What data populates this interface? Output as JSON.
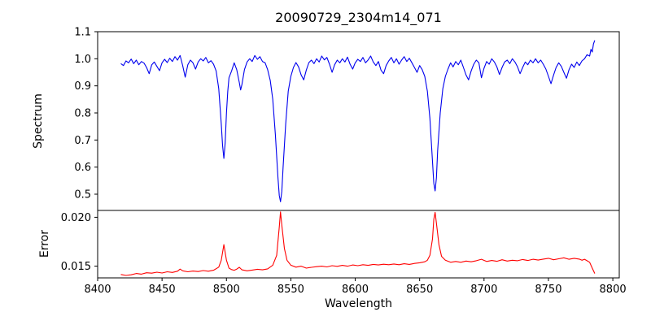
{
  "title": "20090729_2304m14_071",
  "chart_data": [
    {
      "type": "line",
      "panel": "top",
      "ylabel": "Spectrum",
      "xlim": [
        8400,
        8805
      ],
      "ylim": [
        0.44,
        1.1
      ],
      "yticks": [
        0.5,
        0.6,
        0.7,
        0.8,
        0.9,
        1.0,
        1.1
      ],
      "ytick_labels": [
        "0.5",
        "0.6",
        "0.7",
        "0.8",
        "0.9",
        "1.0",
        "1.1"
      ],
      "grid": false,
      "legend": "none",
      "series": [
        {
          "name": "spectrum",
          "color": "#0000ee",
          "x": [
            8418,
            8420,
            8422,
            8424,
            8426,
            8428,
            8430,
            8432,
            8434,
            8436,
            8438,
            8440,
            8442,
            8444,
            8446,
            8448,
            8450,
            8452,
            8454,
            8456,
            8458,
            8460,
            8462,
            8464,
            8466,
            8468,
            8470,
            8472,
            8474,
            8476,
            8478,
            8480,
            8482,
            8484,
            8486,
            8488,
            8490,
            8492,
            8494,
            8496,
            8497,
            8498,
            8499,
            8500,
            8501,
            8502,
            8504,
            8506,
            8508,
            8510,
            8511,
            8512,
            8514,
            8516,
            8518,
            8520,
            8522,
            8524,
            8526,
            8528,
            8530,
            8532,
            8534,
            8536,
            8538,
            8540,
            8541,
            8542,
            8543,
            8544,
            8546,
            8548,
            8550,
            8552,
            8554,
            8556,
            8558,
            8560,
            8562,
            8564,
            8566,
            8568,
            8570,
            8572,
            8574,
            8576,
            8578,
            8580,
            8582,
            8584,
            8586,
            8588,
            8590,
            8592,
            8594,
            8596,
            8598,
            8600,
            8602,
            8604,
            8606,
            8608,
            8610,
            8612,
            8614,
            8616,
            8618,
            8620,
            8622,
            8624,
            8626,
            8628,
            8630,
            8632,
            8634,
            8636,
            8638,
            8640,
            8642,
            8644,
            8646,
            8648,
            8650,
            8652,
            8654,
            8656,
            8658,
            8660,
            8661,
            8662,
            8663,
            8664,
            8666,
            8668,
            8670,
            8672,
            8674,
            8676,
            8678,
            8680,
            8682,
            8684,
            8686,
            8688,
            8690,
            8692,
            8694,
            8696,
            8698,
            8700,
            8702,
            8704,
            8706,
            8708,
            8710,
            8712,
            8714,
            8716,
            8718,
            8720,
            8722,
            8724,
            8726,
            8728,
            8730,
            8732,
            8734,
            8736,
            8738,
            8740,
            8742,
            8744,
            8746,
            8748,
            8750,
            8752,
            8754,
            8756,
            8758,
            8760,
            8762,
            8764,
            8766,
            8768,
            8770,
            8772,
            8774,
            8776,
            8778,
            8780,
            8782,
            8783,
            8784,
            8785,
            8786
          ],
          "y": [
            0.982,
            0.975,
            0.992,
            0.985,
            0.999,
            0.982,
            0.995,
            0.978,
            0.99,
            0.984,
            0.968,
            0.945,
            0.978,
            0.988,
            0.972,
            0.956,
            0.985,
            0.998,
            0.986,
            1.002,
            0.99,
            1.008,
            0.995,
            1.012,
            0.975,
            0.932,
            0.978,
            0.995,
            0.985,
            0.962,
            0.988,
            1.0,
            0.992,
            1.005,
            0.985,
            0.993,
            0.98,
            0.955,
            0.89,
            0.76,
            0.68,
            0.632,
            0.69,
            0.8,
            0.88,
            0.93,
            0.955,
            0.985,
            0.96,
            0.912,
            0.885,
            0.905,
            0.96,
            0.988,
            1.0,
            0.99,
            1.012,
            0.998,
            1.008,
            0.99,
            0.985,
            0.96,
            0.92,
            0.85,
            0.72,
            0.56,
            0.495,
            0.472,
            0.51,
            0.6,
            0.76,
            0.88,
            0.935,
            0.968,
            0.986,
            0.97,
            0.94,
            0.922,
            0.958,
            0.986,
            0.995,
            0.982,
            1.0,
            0.988,
            1.01,
            0.996,
            1.005,
            0.98,
            0.95,
            0.978,
            0.995,
            0.985,
            1.0,
            0.988,
            1.006,
            0.98,
            0.962,
            0.985,
            0.998,
            0.99,
            1.005,
            0.985,
            0.996,
            1.01,
            0.988,
            0.975,
            0.99,
            0.958,
            0.945,
            0.975,
            0.992,
            1.005,
            0.985,
            1.0,
            0.98,
            0.995,
            1.008,
            0.99,
            1.002,
            0.985,
            0.968,
            0.95,
            0.975,
            0.96,
            0.935,
            0.88,
            0.78,
            0.62,
            0.54,
            0.512,
            0.56,
            0.66,
            0.8,
            0.89,
            0.935,
            0.962,
            0.985,
            0.97,
            0.99,
            0.978,
            0.995,
            0.968,
            0.94,
            0.922,
            0.955,
            0.98,
            0.995,
            0.985,
            0.93,
            0.965,
            0.99,
            0.98,
            1.0,
            0.988,
            0.97,
            0.942,
            0.968,
            0.988,
            0.995,
            0.982,
            1.0,
            0.988,
            0.97,
            0.945,
            0.968,
            0.988,
            0.978,
            0.995,
            0.985,
            1.0,
            0.985,
            0.995,
            0.98,
            0.962,
            0.935,
            0.908,
            0.94,
            0.968,
            0.985,
            0.972,
            0.95,
            0.928,
            0.96,
            0.98,
            0.968,
            0.988,
            0.975,
            0.992,
            1.0,
            1.015,
            1.01,
            1.035,
            1.025,
            1.055,
            1.068
          ]
        }
      ]
    },
    {
      "type": "line",
      "panel": "bottom",
      "ylabel": "Error",
      "xlabel": "Wavelength",
      "xlim": [
        8400,
        8805
      ],
      "ylim": [
        0.0138,
        0.0207
      ],
      "yticks": [
        0.015,
        0.02
      ],
      "ytick_labels": [
        "0.015",
        "0.020"
      ],
      "xticks": [
        8400,
        8450,
        8500,
        8550,
        8600,
        8650,
        8700,
        8750,
        8800
      ],
      "xtick_labels": [
        "8400",
        "8450",
        "8500",
        "8550",
        "8600",
        "8650",
        "8700",
        "8750",
        "8800"
      ],
      "grid": false,
      "legend": "none",
      "series": [
        {
          "name": "error",
          "color": "#ff0000",
          "x": [
            8418,
            8422,
            8426,
            8430,
            8434,
            8438,
            8442,
            8446,
            8450,
            8454,
            8458,
            8462,
            8464,
            8466,
            8470,
            8474,
            8478,
            8482,
            8486,
            8490,
            8494,
            8496,
            8498,
            8500,
            8502,
            8504,
            8506,
            8508,
            8510,
            8512,
            8516,
            8520,
            8524,
            8528,
            8532,
            8536,
            8539,
            8541,
            8542,
            8543,
            8545,
            8547,
            8550,
            8554,
            8558,
            8562,
            8566,
            8570,
            8574,
            8578,
            8582,
            8586,
            8590,
            8594,
            8598,
            8602,
            8606,
            8610,
            8614,
            8618,
            8622,
            8626,
            8630,
            8634,
            8638,
            8642,
            8646,
            8650,
            8654,
            8656,
            8658,
            8660,
            8661,
            8662,
            8663,
            8665,
            8667,
            8670,
            8674,
            8678,
            8682,
            8686,
            8690,
            8694,
            8698,
            8702,
            8706,
            8710,
            8714,
            8718,
            8722,
            8726,
            8730,
            8734,
            8738,
            8742,
            8746,
            8750,
            8754,
            8758,
            8762,
            8766,
            8770,
            8774,
            8776,
            8778,
            8780,
            8782,
            8784,
            8786
          ],
          "y": [
            0.01415,
            0.01405,
            0.01412,
            0.01425,
            0.01418,
            0.01432,
            0.01428,
            0.01438,
            0.0143,
            0.01442,
            0.01436,
            0.01448,
            0.0147,
            0.01452,
            0.01442,
            0.0145,
            0.01445,
            0.01455,
            0.01448,
            0.01458,
            0.0149,
            0.0156,
            0.0172,
            0.0156,
            0.0148,
            0.01465,
            0.01458,
            0.0147,
            0.01488,
            0.01462,
            0.01452,
            0.0146,
            0.01468,
            0.01462,
            0.01472,
            0.0151,
            0.0161,
            0.019,
            0.02055,
            0.0192,
            0.0168,
            0.0156,
            0.0151,
            0.0149,
            0.015,
            0.0148,
            0.01488,
            0.01495,
            0.015,
            0.01492,
            0.01505,
            0.01498,
            0.01508,
            0.015,
            0.01512,
            0.01505,
            0.01515,
            0.01508,
            0.01518,
            0.01512,
            0.0152,
            0.01515,
            0.01522,
            0.01515,
            0.01525,
            0.01518,
            0.01528,
            0.01535,
            0.01545,
            0.0156,
            0.0161,
            0.0178,
            0.0198,
            0.0205,
            0.0194,
            0.0172,
            0.016,
            0.0156,
            0.0154,
            0.01548,
            0.0154,
            0.01552,
            0.01545,
            0.01555,
            0.0157,
            0.01548,
            0.01558,
            0.0155,
            0.01565,
            0.01552,
            0.0156,
            0.01555,
            0.01568,
            0.01558,
            0.0157,
            0.01562,
            0.01572,
            0.0158,
            0.01565,
            0.01575,
            0.01585,
            0.0157,
            0.0158,
            0.01572,
            0.0156,
            0.0157,
            0.01555,
            0.0154,
            0.0148,
            0.01425
          ]
        }
      ]
    }
  ]
}
